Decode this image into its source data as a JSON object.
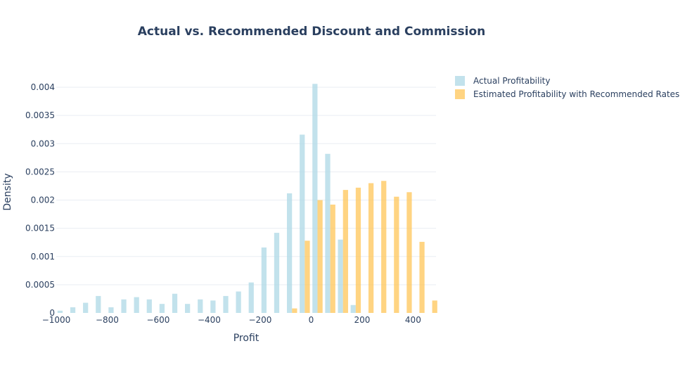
{
  "chart_data": {
    "type": "bar",
    "title": "Actual vs. Recommended Discount and Commission",
    "xlabel": "Profit",
    "ylabel": "Density",
    "xlim": [
      -1000,
      490
    ],
    "ylim": [
      0,
      0.0043
    ],
    "x_ticks": [
      -1000,
      -800,
      -600,
      -400,
      -200,
      0,
      200,
      400
    ],
    "x_tick_labels": [
      "−1000",
      "−800",
      "−600",
      "−400",
      "−200",
      "0",
      "200",
      "400"
    ],
    "y_ticks": [
      0,
      0.0005,
      0.001,
      0.0015,
      0.002,
      0.0025,
      0.003,
      0.0035,
      0.004
    ],
    "y_tick_labels": [
      "0",
      "0.0005",
      "0.001",
      "0.0015",
      "0.002",
      "0.0025",
      "0.003",
      "0.0035",
      "0.004"
    ],
    "grid": true,
    "legend_position": "top-right",
    "bin_width": 50,
    "series": [
      {
        "name": "Actual Profitability",
        "color": "#add8e6",
        "bins": [
          {
            "x": -975,
            "value": 4e-05
          },
          {
            "x": -925,
            "value": 0.0001
          },
          {
            "x": -875,
            "value": 0.00018
          },
          {
            "x": -825,
            "value": 0.0003
          },
          {
            "x": -775,
            "value": 0.0001
          },
          {
            "x": -725,
            "value": 0.00024
          },
          {
            "x": -675,
            "value": 0.00028
          },
          {
            "x": -625,
            "value": 0.00024
          },
          {
            "x": -575,
            "value": 0.00016
          },
          {
            "x": -525,
            "value": 0.00034
          },
          {
            "x": -475,
            "value": 0.00016
          },
          {
            "x": -425,
            "value": 0.00024
          },
          {
            "x": -375,
            "value": 0.00022
          },
          {
            "x": -325,
            "value": 0.0003
          },
          {
            "x": -275,
            "value": 0.00038
          },
          {
            "x": -225,
            "value": 0.00054
          },
          {
            "x": -175,
            "value": 0.00116
          },
          {
            "x": -125,
            "value": 0.00142
          },
          {
            "x": -75,
            "value": 0.00212
          },
          {
            "x": -25,
            "value": 0.00316
          },
          {
            "x": 25,
            "value": 0.00406
          },
          {
            "x": 75,
            "value": 0.00282
          },
          {
            "x": 125,
            "value": 0.0013
          },
          {
            "x": 175,
            "value": 0.00014
          }
        ]
      },
      {
        "name": "Estimated Profitability with Recommended Rates",
        "color": "#ffc658",
        "bins": [
          {
            "x": -75,
            "value": 8e-05
          },
          {
            "x": -25,
            "value": 0.00128
          },
          {
            "x": 25,
            "value": 0.002
          },
          {
            "x": 75,
            "value": 0.00192
          },
          {
            "x": 125,
            "value": 0.00218
          },
          {
            "x": 175,
            "value": 0.00222
          },
          {
            "x": 225,
            "value": 0.0023
          },
          {
            "x": 275,
            "value": 0.00234
          },
          {
            "x": 325,
            "value": 0.00206
          },
          {
            "x": 375,
            "value": 0.00214
          },
          {
            "x": 425,
            "value": 0.00126
          },
          {
            "x": 475,
            "value": 0.00022
          }
        ]
      }
    ]
  }
}
